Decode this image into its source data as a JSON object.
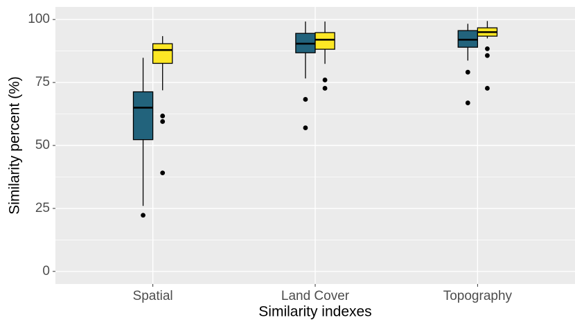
{
  "chart_data": {
    "type": "boxplot",
    "x_label": "Similarity indexes",
    "y_label": "Similarity percent (%)",
    "categories": [
      "Spatial",
      "Land Cover",
      "Topography"
    ],
    "series": [
      {
        "color": "#22637c",
        "boxes": [
          {
            "min": 26,
            "q1": 52.3,
            "median": 65,
            "q3": 71.3,
            "max": 84.8,
            "outliers": [
              22.3
            ]
          },
          {
            "min": 76.6,
            "q1": 86.8,
            "median": 90.4,
            "q3": 94.5,
            "max": 99.2,
            "outliers": [
              68.3,
              57
            ]
          },
          {
            "min": 83.7,
            "q1": 89,
            "median": 92,
            "q3": 95.6,
            "max": 98.3,
            "outliers": [
              79.1,
              66.9
            ]
          }
        ]
      },
      {
        "color": "#fde725",
        "boxes": [
          {
            "min": 71.9,
            "q1": 82.6,
            "median": 87.9,
            "q3": 90.4,
            "max": 93.4,
            "outliers": [
              61.7,
              59.5,
              39.1
            ]
          },
          {
            "min": 82.4,
            "q1": 88.2,
            "median": 92,
            "q3": 94.8,
            "max": 99.2,
            "outliers": [
              76,
              72.7
            ]
          },
          {
            "min": 92.5,
            "q1": 93.4,
            "median": 95,
            "q3": 96.7,
            "max": 99.4,
            "outliers": [
              88.4,
              85.7,
              72.7
            ]
          }
        ]
      }
    ],
    "ylim": [
      -5,
      105
    ],
    "yticks": [
      0,
      25,
      50,
      75,
      100
    ],
    "minor_yticks": [
      12.5,
      37.5,
      62.5,
      87.5
    ],
    "grid": true
  }
}
